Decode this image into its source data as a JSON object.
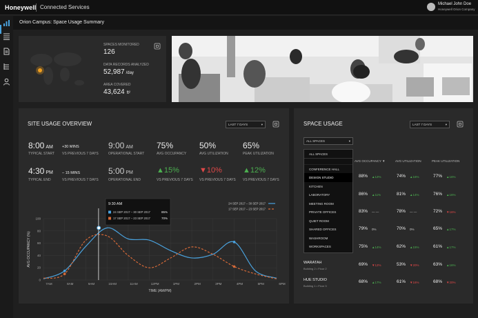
{
  "header": {
    "logo": "Honeywell",
    "app_name": "Connected Services",
    "user_name": "Michael John Doe",
    "user_role": "Honeywell Orion Company"
  },
  "page_title": "Orion Campus: Space Usage Summary",
  "summary": {
    "spaces_label": "SPACES MONITORED",
    "spaces_value": "126",
    "records_label": "DATA RECORDS ANALYZED",
    "records_value": "52,987",
    "records_unit": "/day",
    "area_label": "AREA COVERED",
    "area_value": "43,624",
    "area_unit": "ft²"
  },
  "site": {
    "title": "SITE USAGE OVERVIEW",
    "range": "LAST 7 DAYS",
    "typical_start_value": "8:00",
    "typical_start_ampm": "AM",
    "typical_start_label": "TYPICAL START",
    "start_delta": "+30 MINS",
    "start_delta_sub": "VS PREVIOUS 7 DAYS",
    "op_start_value": "9:00",
    "op_start_ampm": "AM",
    "op_start_label": "OPERATIONAL START",
    "typical_end_value": "4:30",
    "typical_end_ampm": "PM",
    "typical_end_label": "TYPICAL END",
    "end_delta": "– 15 MINS",
    "end_delta_sub": "VS PREVIOUS 7 DAYS",
    "op_end_value": "5:00",
    "op_end_ampm": "PM",
    "op_end_label": "OPERATIONAL END",
    "avg_occ_value": "75%",
    "avg_occ_label": "AVG OCCUPANCY",
    "avg_occ_delta": "15%",
    "avg_occ_sub": "VS PREVIOUS 7 DAYS",
    "avg_util_value": "50%",
    "avg_util_label": "AVG UTILIZATION",
    "avg_util_delta": "10%",
    "avg_util_sub": "VS PREVIOUS 7 DAYS",
    "peak_util_value": "65%",
    "peak_util_label": "PEAK UTILIZATION",
    "peak_util_delta": "12%",
    "peak_util_sub": "VS PREVIOUS 7 DAYS"
  },
  "chart_data": {
    "type": "line",
    "xlabel": "TIME (AM/PM)",
    "ylabel": "AVG OCCUPANCY (%)",
    "categories": [
      "7AM",
      "8AM",
      "9AM",
      "10AM",
      "11AM",
      "12PM",
      "1PM",
      "2PM",
      "3PM",
      "4PM",
      "5PM",
      "6PM"
    ],
    "ylim": [
      0,
      100
    ],
    "yticks": [
      0,
      20,
      40,
      60,
      80,
      100
    ],
    "series": [
      {
        "name": "24 SEP 2017 – 30 SEP 2017",
        "color": "#4aa3df",
        "values": [
          2,
          15,
          55,
          85,
          67,
          65,
          48,
          36,
          42,
          62,
          15,
          3
        ]
      },
      {
        "name": "17 SEP 2017 – 23 SEP 2017",
        "color": "#d86a38",
        "values": [
          3,
          10,
          65,
          72,
          40,
          20,
          36,
          54,
          42,
          22,
          10,
          2
        ]
      }
    ],
    "tooltip": {
      "time": "9:30 AM",
      "rows": [
        {
          "label": "24 SEP 2017 – 30 SEP 2017",
          "value": "85%"
        },
        {
          "label": "17 SEP 2017 – 23 SEP 2017",
          "value": "70%"
        }
      ]
    },
    "grid": true,
    "legend": "top-right"
  },
  "space": {
    "title": "SPACE USAGE",
    "range": "LAST 7 DAYS",
    "filter_value": "ALL SPACES",
    "menu": [
      "ALL SPACES",
      "CONFERENCE HALL",
      "DESIGN STUDIO",
      "KITCHEN",
      "LABORATORY",
      "MEETING ROOM",
      "PRIVATE OFFICES",
      "QUIET ROOM",
      "SHARED OFFICES",
      "WASHROOM",
      "WORKSPACES"
    ],
    "col_occ": "AVG OCCUPANCY",
    "col_util": "AVG UTILIZATION",
    "col_peak": "PEAK UTILIZATION",
    "rows": [
      {
        "occ": "88%",
        "occ_d": "12%",
        "occ_dir": "up",
        "util": "74%",
        "util_d": "16%",
        "util_dir": "up",
        "peak": "77%",
        "peak_d": "16%",
        "peak_dir": "up"
      },
      {
        "occ": "86%",
        "occ_d": "11%",
        "occ_dir": "up",
        "util": "81%",
        "util_d": "14%",
        "util_dir": "up",
        "peak": "76%",
        "peak_d": "16%",
        "peak_dir": "up"
      },
      {
        "occ": "83%",
        "occ_d": "— —",
        "occ_dir": "flat",
        "util": "78%",
        "util_d": "— —",
        "util_dir": "flat",
        "peak": "72%",
        "peak_d": "16%",
        "peak_dir": "down"
      },
      {
        "occ": "79%",
        "occ_d": "0%",
        "occ_dir": "flat",
        "util": "70%",
        "util_d": "0%",
        "util_dir": "flat",
        "peak": "65%",
        "peak_d": "17%",
        "peak_dir": "up"
      },
      {
        "name": "",
        "sub": "Building 3 • Floor 3",
        "occ": "75%",
        "occ_d": "14%",
        "occ_dir": "up",
        "util": "62%",
        "util_d": "15%",
        "util_dir": "up",
        "peak": "61%",
        "peak_d": "17%",
        "peak_dir": "up"
      },
      {
        "name": "WARATAH",
        "sub": "Building 2 • Floor 2",
        "occ": "69%",
        "occ_d": "12%",
        "occ_dir": "down",
        "util": "53%",
        "util_d": "20%",
        "util_dir": "down",
        "peak": "63%",
        "peak_d": "16%",
        "peak_dir": "up"
      },
      {
        "name": "HUE STUDIO",
        "sub": "Building 1 • Floor 3",
        "occ": "68%",
        "occ_d": "17%",
        "occ_dir": "up",
        "util": "61%",
        "util_d": "16%",
        "util_dir": "down",
        "peak": "68%",
        "peak_d": "20%",
        "peak_dir": "down"
      }
    ]
  }
}
